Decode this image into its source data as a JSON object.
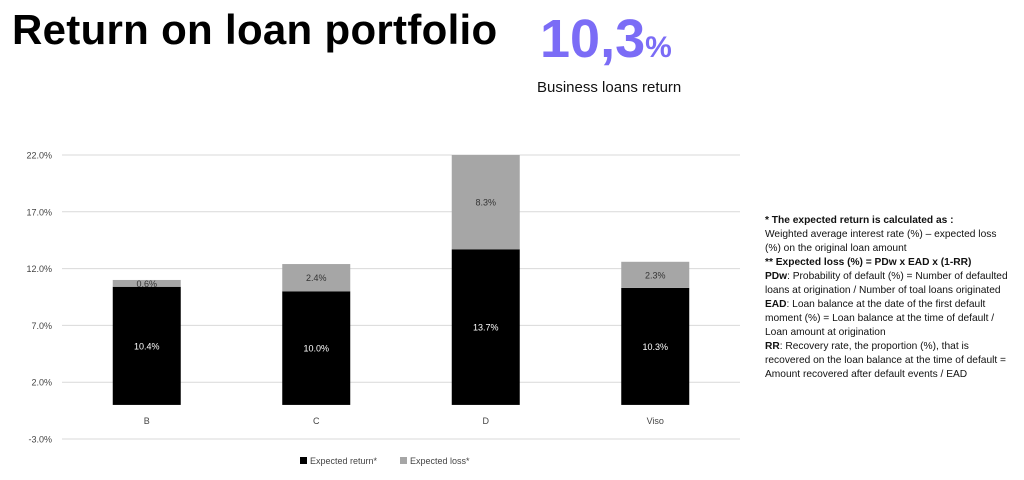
{
  "header": {
    "title": "Return on loan portfolio",
    "kpi_value": "10,3",
    "kpi_unit": "%",
    "kpi_label": "Business loans return"
  },
  "colors": {
    "accent": "#7b6cf6",
    "expected_return": "#000000",
    "expected_loss": "#a6a6a6",
    "grid": "#d9d9d9"
  },
  "chart_data": {
    "type": "bar",
    "stacked": true,
    "categories": [
      "B",
      "C",
      "D",
      "Viso"
    ],
    "series": [
      {
        "name": "Expected return*",
        "values": [
          10.4,
          10.0,
          13.7,
          10.3
        ],
        "labels": [
          "10.4%",
          "10.0%",
          "13.7%",
          "10.3%"
        ]
      },
      {
        "name": "Expected loss*",
        "values": [
          0.6,
          2.4,
          8.3,
          2.3
        ],
        "labels": [
          "0.6%",
          "2.4%",
          "8.3%",
          "2.3%"
        ]
      }
    ],
    "yticks": [
      "22.0%",
      "17.0%",
      "12.0%",
      "7.0%",
      "2.0%",
      "-3.0%"
    ],
    "ytick_values": [
      22,
      17,
      12,
      7,
      2,
      -3
    ],
    "ylim": [
      -3,
      22
    ],
    "grid": true,
    "legend_position": "bottom"
  },
  "notes": {
    "n1_head": "* The expected return is calculated as :",
    "n1_body": "Weighted average interest rate (%) – expected loss (%) on the original loan amount",
    "n2_head": "** Expected loss (%) = PDw x EAD x (1-RR)",
    "pdw_term": "PDw",
    "pdw_text": ": Probability of default (%) = Number of defaulted loans at origination / Number of toal loans originated",
    "ead_term": "EAD",
    "ead_text": ": Loan balance at the date of the first default moment (%) = Loan balance at the time of default / Loan amount at origination",
    "rr_term": "RR",
    "rr_text": ": Recovery rate, the proportion (%), that is recovered on the loan balance at the time of default = Amount recovered after default events / EAD"
  }
}
